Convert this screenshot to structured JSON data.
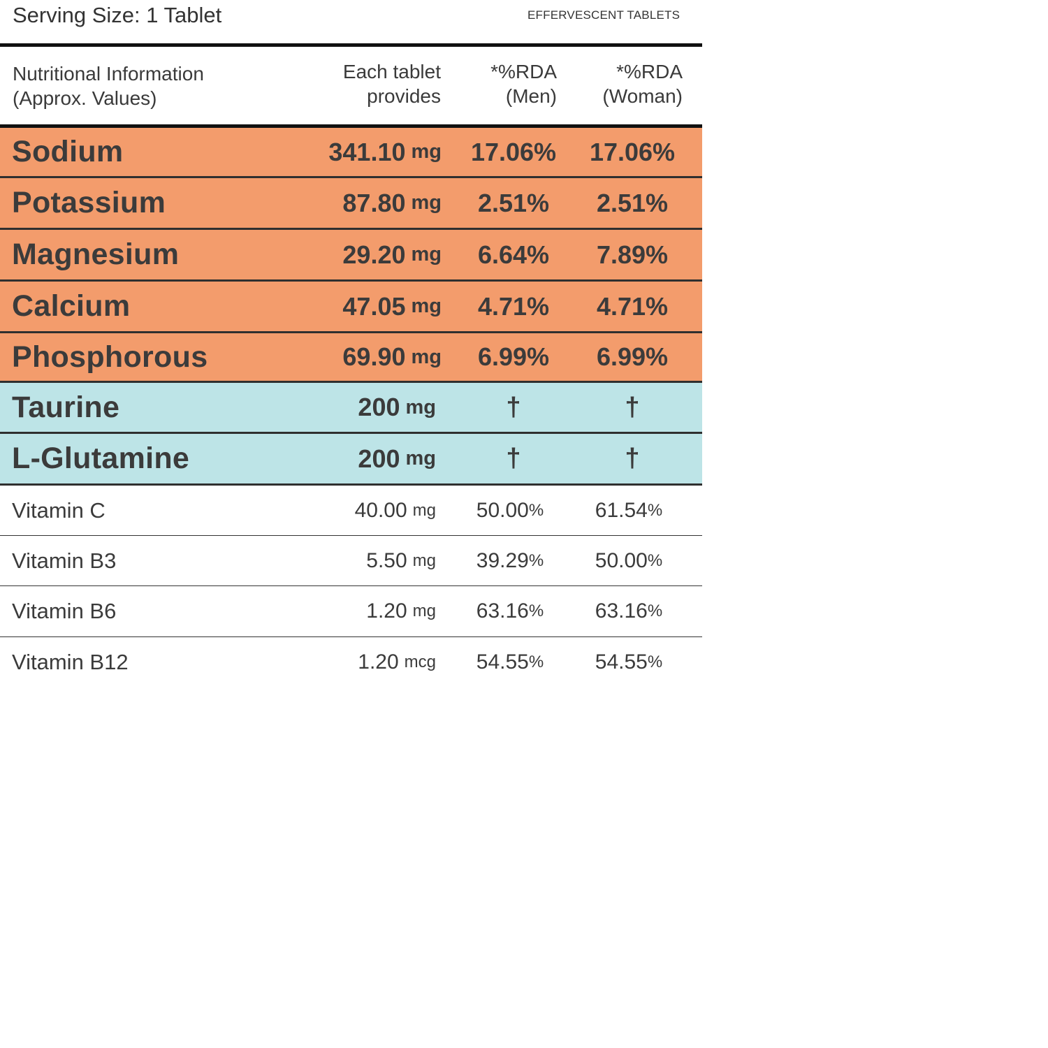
{
  "header": {
    "serving_size": "Serving Size: 1 Tablet",
    "product_type": "EFFERVESCENT TABLETS"
  },
  "table": {
    "columns": {
      "name": "Nutritional Information\n(Approx. Values)",
      "amount": "Each tablet\nprovides",
      "rda_men": "*%RDA\n(Men)",
      "rda_woman": "*%RDA\n(Woman)"
    },
    "minerals": [
      {
        "name": "Sodium",
        "amount": "341.10",
        "unit": "mg",
        "rda_men": "17.06",
        "rda_woman": "17.06",
        "pct": "%"
      },
      {
        "name": "Potassium",
        "amount": "87.80",
        "unit": "mg",
        "rda_men": "2.51",
        "rda_woman": "2.51",
        "pct": "%"
      },
      {
        "name": "Magnesium",
        "amount": "29.20",
        "unit": "mg",
        "rda_men": "6.64",
        "rda_woman": "7.89",
        "pct": "%"
      },
      {
        "name": "Calcium",
        "amount": "47.05",
        "unit": "mg",
        "rda_men": "4.71",
        "rda_woman": "4.71",
        "pct": "%"
      },
      {
        "name": "Phosphorous",
        "amount": "69.90",
        "unit": "mg",
        "rda_men": "6.99",
        "rda_woman": "6.99",
        "pct": "%"
      }
    ],
    "amino_acids": [
      {
        "name": "Taurine",
        "amount": "200",
        "unit": "mg",
        "rda_men": "†",
        "rda_woman": "†"
      },
      {
        "name": "L-Glutamine",
        "amount": "200",
        "unit": "mg",
        "rda_men": "†",
        "rda_woman": "†"
      }
    ],
    "vitamins": [
      {
        "name": "Vitamin C",
        "amount": "40.00",
        "unit": "mg",
        "rda_men": "50.00",
        "rda_woman": "61.54",
        "pct": "%"
      },
      {
        "name": "Vitamin B3",
        "amount": "5.50",
        "unit": "mg",
        "rda_men": "39.29",
        "rda_woman": "50.00",
        "pct": "%"
      },
      {
        "name": "Vitamin B6",
        "amount": "1.20",
        "unit": "mg",
        "rda_men": "63.16",
        "rda_woman": "63.16",
        "pct": "%"
      },
      {
        "name": "Vitamin B12",
        "amount": "1.20",
        "unit": "mcg",
        "rda_men": "54.55",
        "rda_woman": "54.55",
        "pct": "%"
      }
    ]
  },
  "colors": {
    "mineral_row": "#f39c6c",
    "amino_row": "#bde4e7",
    "rule": "#111111"
  }
}
